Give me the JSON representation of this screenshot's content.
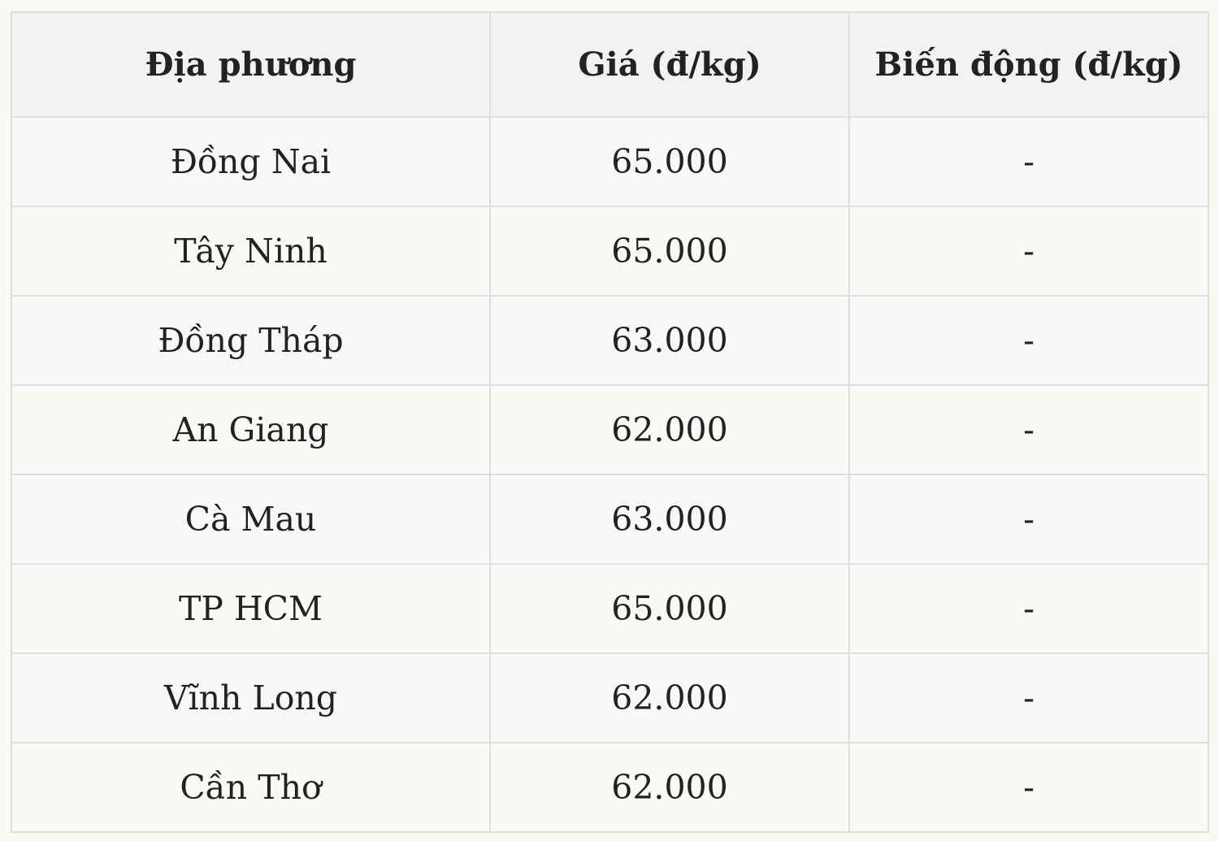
{
  "table": {
    "headers": [
      "Địa phương",
      "Giá (đ/kg)",
      "Biến động (đ/kg)"
    ],
    "rows": [
      [
        "Đồng Nai",
        "65.000",
        "-"
      ],
      [
        "Tây Ninh",
        "65.000",
        "-"
      ],
      [
        "Đồng Tháp",
        "63.000",
        "-"
      ],
      [
        "An Giang",
        "62.000",
        "-"
      ],
      [
        "Cà Mau",
        "63.000",
        "-"
      ],
      [
        "TP HCM",
        "65.000",
        "-"
      ],
      [
        "Vĩnh Long",
        "62.000",
        "-"
      ],
      [
        "Cần Thơ",
        "62.000",
        "-"
      ]
    ]
  }
}
